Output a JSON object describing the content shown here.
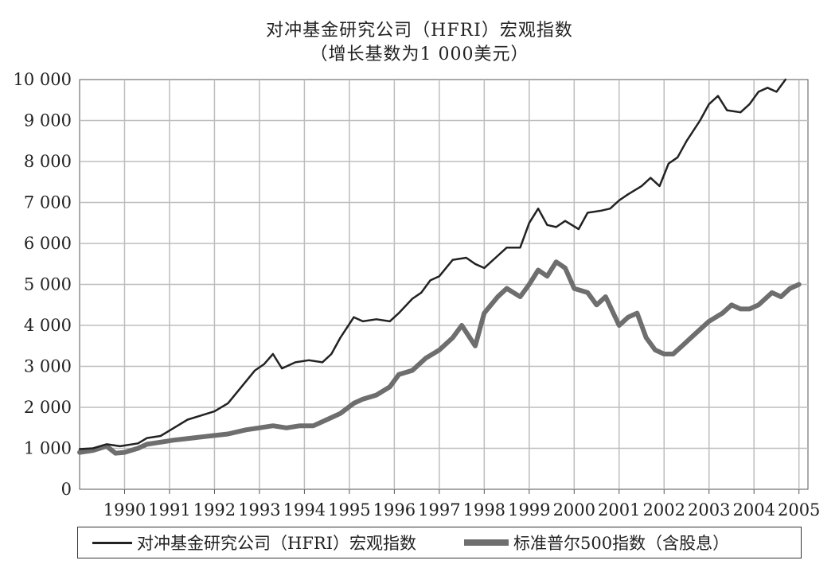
{
  "chart_data": {
    "type": "line",
    "title": "对冲基金研究公司（HFRI）宏观指数",
    "subtitle": "（增长基数为1 000美元）",
    "x_ticks": [
      "1990",
      "1991",
      "1992",
      "1993",
      "1994",
      "1995",
      "1996",
      "1997",
      "1998",
      "1999",
      "2000",
      "2001",
      "2002",
      "2003",
      "2004",
      "2005"
    ],
    "y_ticks": [
      "0",
      "1 000",
      "2 000",
      "3 000",
      "4 000",
      "5 000",
      "6 000",
      "7 000",
      "8 000",
      "9 000",
      "10 000"
    ],
    "xlim": [
      1989.0,
      2005.2
    ],
    "ylim": [
      0,
      10000
    ],
    "grid": true,
    "legend_position": "bottom",
    "series": [
      {
        "name": "对冲基金研究公司（HFRI）宏观指数",
        "color": "#222222",
        "x": [
          1989.0,
          1989.3,
          1989.6,
          1989.9,
          1990.3,
          1990.5,
          1990.8,
          1991.1,
          1991.4,
          1991.7,
          1992.0,
          1992.3,
          1992.6,
          1992.9,
          1993.1,
          1993.3,
          1993.5,
          1993.8,
          1994.1,
          1994.4,
          1994.6,
          1994.8,
          1995.1,
          1995.3,
          1995.6,
          1995.9,
          1996.1,
          1996.4,
          1996.6,
          1996.8,
          1997.0,
          1997.3,
          1997.6,
          1997.8,
          1998.0,
          1998.3,
          1998.5,
          1998.8,
          1999.0,
          1999.2,
          1999.4,
          1999.6,
          1999.8,
          2000.1,
          2000.3,
          2000.6,
          2000.8,
          2001.0,
          2001.2,
          2001.5,
          2001.7,
          2001.9,
          2002.1,
          2002.3,
          2002.5,
          2002.8,
          2003.0,
          2003.2,
          2003.4,
          2003.7,
          2003.9,
          2004.1,
          2004.3,
          2004.5,
          2004.7
        ],
        "y": [
          980,
          1000,
          1100,
          1050,
          1120,
          1250,
          1300,
          1500,
          1700,
          1800,
          1900,
          2100,
          2500,
          2900,
          3050,
          3300,
          2950,
          3100,
          3150,
          3100,
          3300,
          3700,
          4200,
          4100,
          4150,
          4100,
          4300,
          4650,
          4800,
          5100,
          5200,
          5600,
          5650,
          5500,
          5400,
          5700,
          5900,
          5900,
          6500,
          6850,
          6450,
          6400,
          6550,
          6350,
          6750,
          6800,
          6850,
          7050,
          7200,
          7400,
          7600,
          7400,
          7950,
          8100,
          8500,
          9000,
          9400,
          9600,
          9250,
          9200,
          9400,
          9700,
          9800,
          9700,
          10000
        ]
      },
      {
        "name": "标准普尔500指数（含股息）",
        "color": "#6e6e6e",
        "x": [
          1989.0,
          1989.3,
          1989.6,
          1989.8,
          1990.0,
          1990.3,
          1990.5,
          1990.8,
          1991.1,
          1991.5,
          1991.9,
          1992.3,
          1992.7,
          1993.0,
          1993.3,
          1993.6,
          1993.9,
          1994.2,
          1994.5,
          1994.8,
          1995.1,
          1995.3,
          1995.6,
          1995.9,
          1996.1,
          1996.4,
          1996.7,
          1997.0,
          1997.3,
          1997.5,
          1997.8,
          1998.0,
          1998.3,
          1998.5,
          1998.8,
          1999.0,
          1999.2,
          1999.4,
          1999.6,
          1999.8,
          2000.0,
          2000.3,
          2000.5,
          2000.7,
          2001.0,
          2001.2,
          2001.4,
          2001.6,
          2001.8,
          2002.0,
          2002.2,
          2002.4,
          2002.6,
          2002.8,
          2003.0,
          2003.3,
          2003.5,
          2003.7,
          2003.9,
          2004.1,
          2004.4,
          2004.6,
          2004.8,
          2005.0
        ],
        "y": [
          900,
          950,
          1050,
          880,
          900,
          1000,
          1100,
          1150,
          1200,
          1250,
          1300,
          1350,
          1450,
          1500,
          1550,
          1500,
          1550,
          1550,
          1700,
          1850,
          2100,
          2200,
          2300,
          2500,
          2800,
          2900,
          3200,
          3400,
          3700,
          4000,
          3500,
          4300,
          4700,
          4900,
          4700,
          5000,
          5350,
          5200,
          5550,
          5400,
          4900,
          4800,
          4500,
          4700,
          4000,
          4200,
          4300,
          3700,
          3400,
          3300,
          3300,
          3500,
          3700,
          3900,
          4100,
          4300,
          4500,
          4400,
          4400,
          4500,
          4800,
          4700,
          4900,
          5000
        ]
      }
    ]
  },
  "legend": {
    "item1": "对冲基金研究公司（HFRI）宏观指数",
    "item2": "标准普尔500指数（含股息）"
  }
}
